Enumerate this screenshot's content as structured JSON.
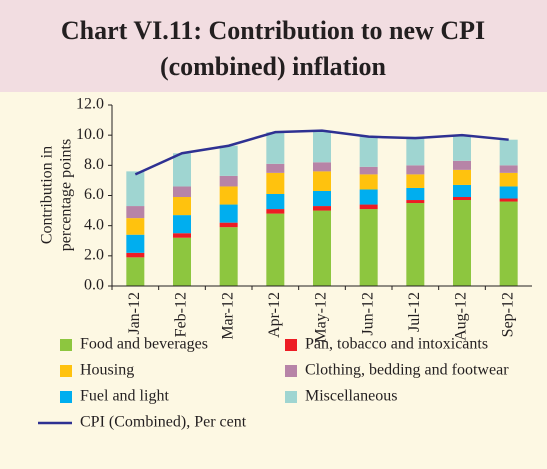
{
  "chart_data": {
    "type": "bar",
    "stacked": true,
    "title": [
      "Chart VI.11: Contribution to new CPI",
      "(combined) inflation"
    ],
    "y_label": [
      "Contribution in",
      "percentage points"
    ],
    "categories": [
      "Jan-12",
      "Feb-12",
      "Mar-12",
      "Apr-12",
      "May-12",
      "Jun-12",
      "Jul-12",
      "Aug-12",
      "Sep-12"
    ],
    "series": [
      {
        "name": "Food and beverages",
        "color": "#8dc63f",
        "values": [
          1.9,
          3.2,
          3.9,
          4.8,
          5.0,
          5.1,
          5.5,
          5.7,
          5.6
        ]
      },
      {
        "name": "Pan, tobacco and intoxicants",
        "color": "#ed1c24",
        "values": [
          0.3,
          0.3,
          0.3,
          0.3,
          0.3,
          0.3,
          0.2,
          0.2,
          0.2
        ]
      },
      {
        "name": "Fuel and light",
        "color": "#00aeef",
        "values": [
          1.2,
          1.2,
          1.2,
          1.0,
          1.0,
          1.0,
          0.8,
          0.8,
          0.8
        ]
      },
      {
        "name": "Housing",
        "color": "#ffc20e",
        "values": [
          1.1,
          1.2,
          1.2,
          1.4,
          1.3,
          1.0,
          0.9,
          1.0,
          0.9
        ]
      },
      {
        "name": "Clothing, bedding and footwear",
        "color": "#b784a7",
        "values": [
          0.8,
          0.7,
          0.7,
          0.6,
          0.6,
          0.5,
          0.6,
          0.6,
          0.5
        ]
      },
      {
        "name": "Miscellaneous",
        "color": "#9fd5d1",
        "values": [
          2.3,
          2.2,
          2.0,
          2.1,
          2.1,
          2.0,
          1.9,
          1.7,
          1.7
        ]
      },
      {
        "name": "CPI (Combined), Per cent",
        "color": "#2e3192",
        "type": "line",
        "values": [
          7.4,
          8.8,
          9.3,
          10.2,
          10.3,
          9.9,
          9.8,
          10.0,
          9.7
        ]
      }
    ],
    "ylim": [
      0,
      12
    ],
    "yticks": [
      {
        "value": 0,
        "label": "0.0"
      },
      {
        "value": 2,
        "label": "2.0"
      },
      {
        "value": 4,
        "label": "4.0"
      },
      {
        "value": 6,
        "label": "6.0"
      },
      {
        "value": 8,
        "label": "8.0"
      },
      {
        "value": 10,
        "label": "10.0"
      },
      {
        "value": 12,
        "label": "12.0"
      }
    ]
  }
}
